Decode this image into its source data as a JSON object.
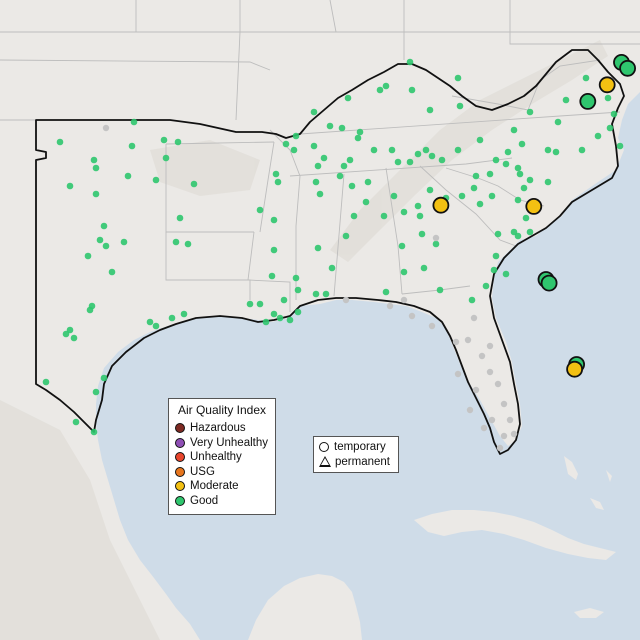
{
  "colors": {
    "water": "#cfdce8",
    "land": "#ebe9e6",
    "terrain_shade": "#dcd8d2",
    "state_line": "#bdbdbd",
    "region_outline": "#111111",
    "inactive": "#c4c4c4",
    "hazardous": "#7e2a22",
    "very_unhealthy": "#8f4fb5",
    "unhealthy": "#e8452c",
    "usg": "#e8761e",
    "moderate": "#f3c012",
    "good": "#2fc66e"
  },
  "legend": {
    "title": "Air Quality Index",
    "items": [
      {
        "label": "Hazardous",
        "color": "#7e2a22"
      },
      {
        "label": "Very Unhealthy",
        "color": "#8f4fb5"
      },
      {
        "label": "Unhealthy",
        "color": "#e8452c"
      },
      {
        "label": "USG",
        "color": "#e8761e"
      },
      {
        "label": "Moderate",
        "color": "#f3c012"
      },
      {
        "label": "Good",
        "color": "#2fc66e"
      }
    ]
  },
  "monitor_types": [
    {
      "label": "temporary",
      "symbol": "circle"
    },
    {
      "label": "permanent",
      "symbol": "triangle"
    }
  ],
  "monitors_highlighted": [
    {
      "lon": -77.9,
      "lat": 39.55,
      "aqi": "good"
    },
    {
      "lon": -77.6,
      "lat": 39.3,
      "aqi": "good"
    },
    {
      "lon": -78.6,
      "lat": 38.6,
      "aqi": "moderate"
    },
    {
      "lon": -79.55,
      "lat": 37.9,
      "aqi": "good"
    },
    {
      "lon": -86.75,
      "lat": 33.5,
      "aqi": "moderate"
    },
    {
      "lon": -82.2,
      "lat": 33.45,
      "aqi": "moderate"
    },
    {
      "lon": -81.6,
      "lat": 30.35,
      "aqi": "good"
    },
    {
      "lon": -81.45,
      "lat": 30.2,
      "aqi": "good"
    },
    {
      "lon": -80.1,
      "lat": 26.75,
      "aqi": "good"
    },
    {
      "lon": -80.2,
      "lat": 26.55,
      "aqi": "moderate"
    }
  ]
}
